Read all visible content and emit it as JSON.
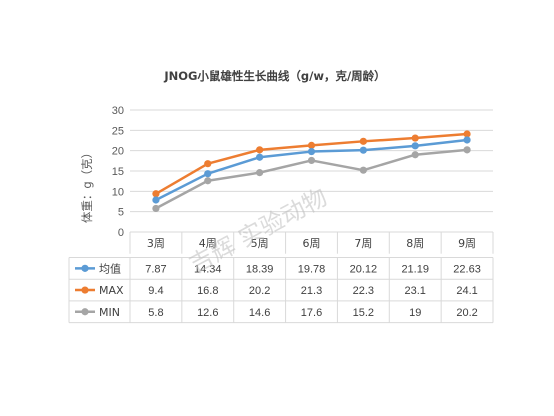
{
  "chart_data": {
    "type": "line",
    "title": "JNOG小鼠雄性生长曲线（g/w，克/周龄）",
    "ylabel": "体重：g（克）",
    "xlabel": "",
    "ylim": [
      0,
      30
    ],
    "yticks": [
      "0",
      "5",
      "10",
      "15",
      "20",
      "25",
      "30"
    ],
    "grid": true,
    "legend": "data-table",
    "categories": [
      "3周",
      "4周",
      "5周",
      "6周",
      "7周",
      "8周",
      "9周"
    ],
    "series": [
      {
        "name": "均值",
        "color": "#5b9bd5",
        "values": [
          7.87,
          14.34,
          18.39,
          19.78,
          20.12,
          21.19,
          22.63
        ]
      },
      {
        "name": "MAX",
        "color": "#ed7d31",
        "values": [
          9.4,
          16.8,
          20.2,
          21.3,
          22.3,
          23.1,
          24.1
        ]
      },
      {
        "name": "MIN",
        "color": "#a5a5a5",
        "values": [
          5.8,
          12.6,
          14.6,
          17.6,
          15.2,
          19,
          20.2
        ]
      }
    ],
    "watermark": "吉辉 实验动物"
  }
}
